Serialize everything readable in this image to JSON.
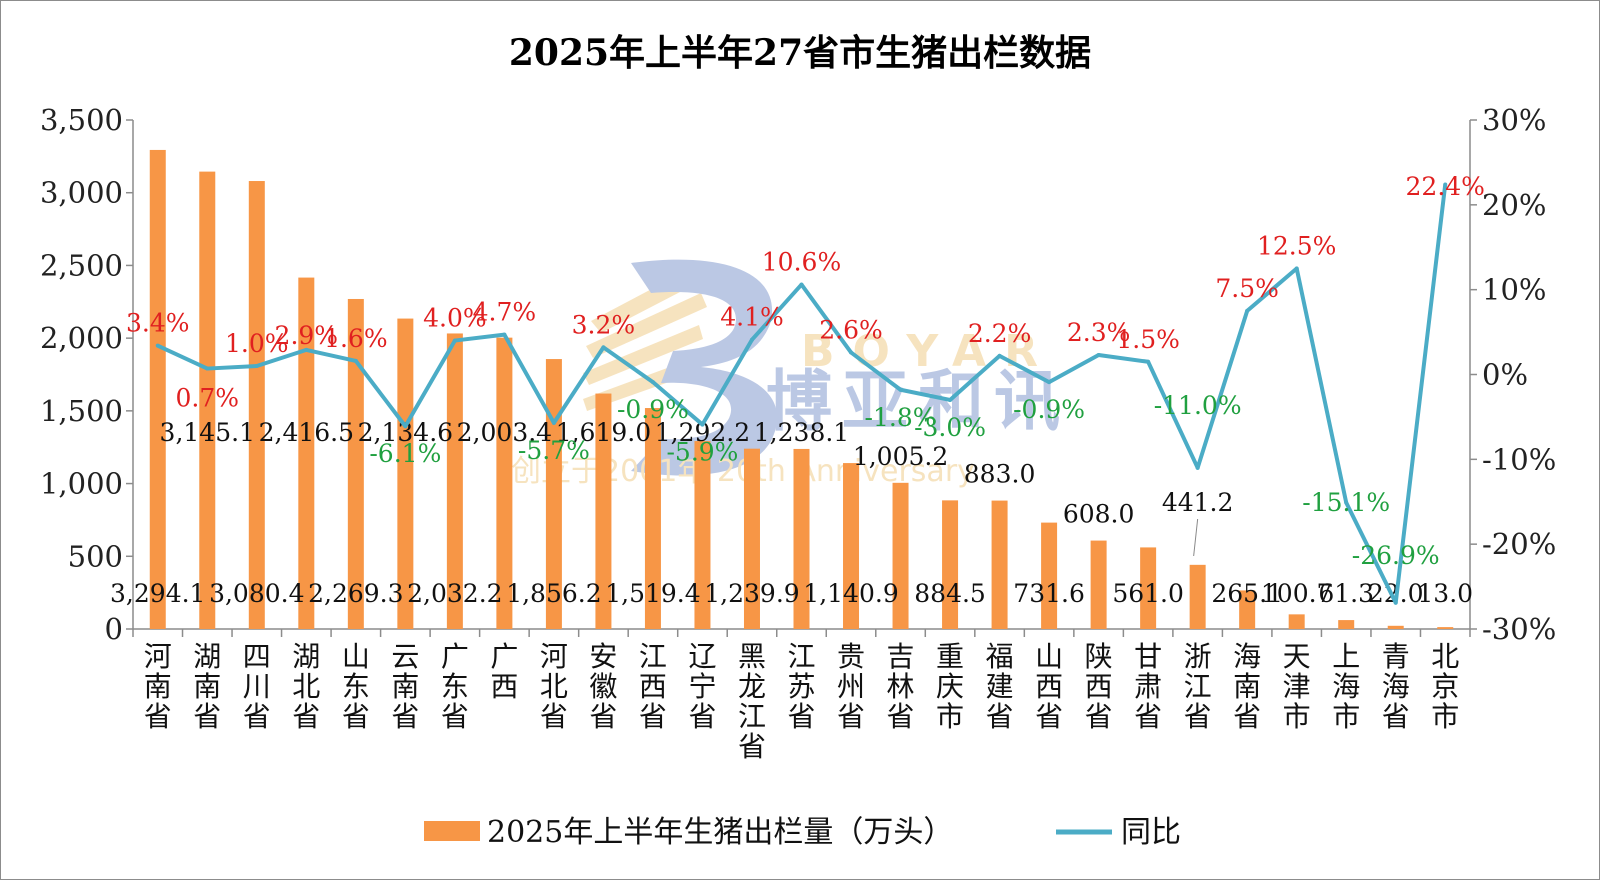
{
  "colors": {
    "bar": "#F79646",
    "line": "#4BACC6",
    "positive": "#E02020",
    "negative": "#20A040",
    "watermark_blue": "#3F63B5",
    "watermark_gold": "#E8B04A"
  },
  "watermark": {
    "brand_cn": "博亚和讯",
    "brand_en": "BOYAR",
    "tagline": "创立于2001年 20th Anniversary"
  },
  "chart_data": {
    "type": "bar",
    "title": "2025年上半年27省市生猪出栏数据",
    "categories": [
      "河南省",
      "湖南省",
      "四川省",
      "湖北省",
      "山东省",
      "云南省",
      "广东省",
      "广西",
      "河北省",
      "安徽省",
      "江西省",
      "辽宁省",
      "黑龙江省",
      "江苏省",
      "贵州省",
      "吉林省",
      "重庆市",
      "福建省",
      "山西省",
      "陕西省",
      "甘肃省",
      "浙江省",
      "海南省",
      "天津市",
      "上海市",
      "青海省",
      "北京市"
    ],
    "series": [
      {
        "name": "2025年上半年生猪出栏量（万头）",
        "type": "bar",
        "axis": "left",
        "values": [
          3294.1,
          3145.1,
          3080.4,
          2416.5,
          2269.3,
          2134.6,
          2032.2,
          2003.4,
          1856.2,
          1619.0,
          1519.4,
          1292.2,
          1239.9,
          1238.1,
          1140.9,
          1005.2,
          884.5,
          883.0,
          731.6,
          608.0,
          561.0,
          441.2,
          265.1,
          100.7,
          61.3,
          22.0,
          13.0
        ],
        "labels": [
          "3,294.1",
          "3,145.1",
          "3,080.4",
          "2,416.5",
          "2,269.3",
          "2,134.6",
          "2,032.2",
          "2,003.4",
          "1,856.2",
          "1,619.0",
          "1,519.4",
          "1,292.2",
          "1,239.9",
          "1,238.1",
          "1,140.9",
          "1,005.2",
          "884.5",
          "883.0",
          "731.6",
          "608.0",
          "561.0",
          "441.2",
          "265.1",
          "100.7",
          "61.3",
          "22.0",
          "13.0"
        ]
      },
      {
        "name": "同比",
        "type": "line",
        "axis": "right",
        "values": [
          3.4,
          0.7,
          1.0,
          2.9,
          1.6,
          -6.1,
          4.0,
          4.7,
          -5.7,
          3.2,
          -0.9,
          -5.9,
          4.1,
          10.6,
          2.6,
          -1.8,
          -3.0,
          2.2,
          -0.9,
          2.3,
          1.5,
          -11.0,
          7.5,
          12.5,
          -15.1,
          -26.9,
          22.4
        ],
        "labels": [
          "3.4%",
          "0.7%",
          "1.0%",
          "2.9%",
          "1.6%",
          "-6.1%",
          "4.0%",
          "4.7%",
          "-5.7%",
          "3.2%",
          "-0.9%",
          "-5.9%",
          "4.1%",
          "10.6%",
          "2.6%",
          "-1.8%",
          "-3.0%",
          "2.2%",
          "-0.9%",
          "2.3%",
          "1.5%",
          "-11.0%",
          "7.5%",
          "12.5%",
          "-15.1%",
          "-26.9%",
          "22.4%"
        ]
      }
    ],
    "y_left": {
      "min": 0,
      "max": 3500,
      "ticks": [
        "0",
        "500",
        "1,000",
        "1,500",
        "2,000",
        "2,500",
        "3,000",
        "3,500"
      ]
    },
    "y_right": {
      "min": -30,
      "max": 30,
      "ticks": [
        "-30%",
        "-20%",
        "-10%",
        "0%",
        "10%",
        "20%",
        "30%"
      ]
    },
    "grid": false,
    "legend": "bottom"
  }
}
